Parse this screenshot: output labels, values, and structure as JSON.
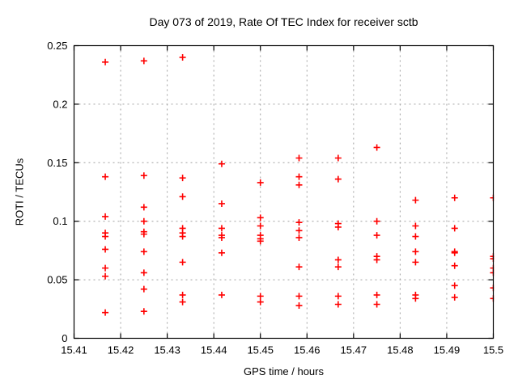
{
  "page": {
    "background": "#ffffff"
  },
  "chart_data": {
    "type": "scatter",
    "title": "Day 073 of 2019, Rate Of TEC Index for receiver sctb",
    "xlabel": "GPS time / hours",
    "ylabel": "ROTI / TECUs",
    "xlim": [
      15.41,
      15.5
    ],
    "ylim": [
      0,
      0.25
    ],
    "x_ticks": [
      {
        "v": 15.41,
        "label": "15.41"
      },
      {
        "v": 15.42,
        "label": "15.42"
      },
      {
        "v": 15.43,
        "label": "15.43"
      },
      {
        "v": 15.44,
        "label": "15.44"
      },
      {
        "v": 15.45,
        "label": "15.45"
      },
      {
        "v": 15.46,
        "label": "15.46"
      },
      {
        "v": 15.47,
        "label": "15.47"
      },
      {
        "v": 15.48,
        "label": "15.48"
      },
      {
        "v": 15.49,
        "label": "15.49"
      },
      {
        "v": 15.5,
        "label": "15.5"
      }
    ],
    "y_ticks": [
      {
        "v": 0,
        "label": "0"
      },
      {
        "v": 0.05,
        "label": "0.05"
      },
      {
        "v": 0.1,
        "label": "0.1"
      },
      {
        "v": 0.15,
        "label": "0.15"
      },
      {
        "v": 0.2,
        "label": "0.2"
      },
      {
        "v": 0.25,
        "label": "0.25"
      }
    ],
    "grid": true,
    "grid_color": "#a0a0a0",
    "border_color": "#000000",
    "legend": "none",
    "marker": {
      "shape": "plus",
      "color": "#ff0000",
      "size": 9,
      "stroke_width": 1.6
    },
    "series": [
      {
        "name": "ROTI",
        "points": [
          [
            15.4167,
            0.236
          ],
          [
            15.4167,
            0.138
          ],
          [
            15.4167,
            0.104
          ],
          [
            15.4167,
            0.09
          ],
          [
            15.4167,
            0.087
          ],
          [
            15.4167,
            0.076
          ],
          [
            15.4167,
            0.06
          ],
          [
            15.4167,
            0.053
          ],
          [
            15.4167,
            0.022
          ],
          [
            15.425,
            0.237
          ],
          [
            15.425,
            0.139
          ],
          [
            15.425,
            0.112
          ],
          [
            15.425,
            0.1
          ],
          [
            15.425,
            0.091
          ],
          [
            15.425,
            0.089
          ],
          [
            15.425,
            0.074
          ],
          [
            15.425,
            0.056
          ],
          [
            15.425,
            0.042
          ],
          [
            15.425,
            0.023
          ],
          [
            15.4333,
            0.24
          ],
          [
            15.4333,
            0.137
          ],
          [
            15.4333,
            0.121
          ],
          [
            15.4333,
            0.094
          ],
          [
            15.4333,
            0.09
          ],
          [
            15.4333,
            0.087
          ],
          [
            15.4333,
            0.065
          ],
          [
            15.4333,
            0.037
          ],
          [
            15.4333,
            0.031
          ],
          [
            15.4417,
            0.149
          ],
          [
            15.4417,
            0.115
          ],
          [
            15.4417,
            0.094
          ],
          [
            15.4417,
            0.088
          ],
          [
            15.4417,
            0.086
          ],
          [
            15.4417,
            0.073
          ],
          [
            15.4417,
            0.037
          ],
          [
            15.45,
            0.133
          ],
          [
            15.45,
            0.103
          ],
          [
            15.45,
            0.096
          ],
          [
            15.45,
            0.088
          ],
          [
            15.45,
            0.085
          ],
          [
            15.45,
            0.083
          ],
          [
            15.45,
            0.036
          ],
          [
            15.45,
            0.031
          ],
          [
            15.4583,
            0.154
          ],
          [
            15.4583,
            0.138
          ],
          [
            15.4583,
            0.131
          ],
          [
            15.4583,
            0.099
          ],
          [
            15.4583,
            0.092
          ],
          [
            15.4583,
            0.086
          ],
          [
            15.4583,
            0.061
          ],
          [
            15.4583,
            0.036
          ],
          [
            15.4583,
            0.028
          ],
          [
            15.4667,
            0.154
          ],
          [
            15.4667,
            0.136
          ],
          [
            15.4667,
            0.098
          ],
          [
            15.4667,
            0.095
          ],
          [
            15.4667,
            0.067
          ],
          [
            15.4667,
            0.061
          ],
          [
            15.4667,
            0.036
          ],
          [
            15.4667,
            0.029
          ],
          [
            15.475,
            0.163
          ],
          [
            15.475,
            0.1
          ],
          [
            15.475,
            0.088
          ],
          [
            15.475,
            0.07
          ],
          [
            15.475,
            0.067
          ],
          [
            15.475,
            0.037
          ],
          [
            15.475,
            0.029
          ],
          [
            15.4833,
            0.118
          ],
          [
            15.4833,
            0.096
          ],
          [
            15.4833,
            0.087
          ],
          [
            15.4833,
            0.074
          ],
          [
            15.4833,
            0.065
          ],
          [
            15.4833,
            0.037
          ],
          [
            15.4833,
            0.034
          ],
          [
            15.4917,
            0.12
          ],
          [
            15.4917,
            0.094
          ],
          [
            15.4917,
            0.074
          ],
          [
            15.4917,
            0.073
          ],
          [
            15.4917,
            0.062
          ],
          [
            15.4917,
            0.045
          ],
          [
            15.4917,
            0.035
          ],
          [
            15.5,
            0.12
          ],
          [
            15.5,
            0.07
          ],
          [
            15.5,
            0.068
          ],
          [
            15.5,
            0.06
          ],
          [
            15.5,
            0.056
          ],
          [
            15.5,
            0.043
          ],
          [
            15.5,
            0.034
          ]
        ]
      }
    ]
  }
}
